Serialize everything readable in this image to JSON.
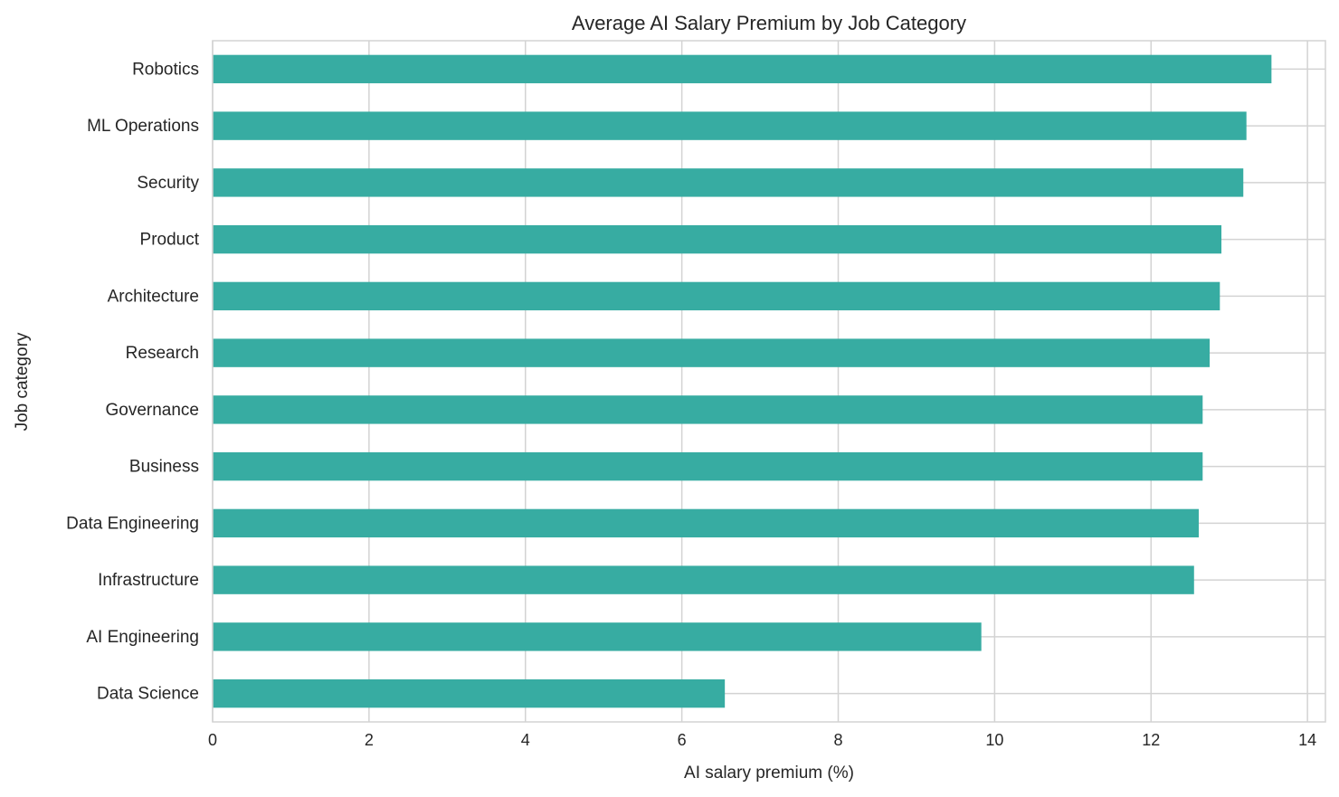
{
  "chart_data": {
    "type": "bar",
    "orientation": "horizontal",
    "title": "Average AI Salary Premium by Job Category",
    "xlabel": "AI salary premium (%)",
    "ylabel": "Job category",
    "categories": [
      "Robotics",
      "ML Operations",
      "Security",
      "Product",
      "Architecture",
      "Research",
      "Governance",
      "Business",
      "Data Engineering",
      "Infrastructure",
      "AI Engineering",
      "Data Science"
    ],
    "values": [
      13.54,
      13.22,
      13.18,
      12.9,
      12.88,
      12.75,
      12.66,
      12.66,
      12.61,
      12.55,
      9.83,
      6.55
    ],
    "xlim": [
      0,
      14.23
    ],
    "xticks": [
      0,
      2,
      4,
      6,
      8,
      10,
      12,
      14
    ],
    "grid": true,
    "legend": "none",
    "colors": {
      "bar": "#37aca2",
      "grid": "#d3d3d3"
    }
  }
}
